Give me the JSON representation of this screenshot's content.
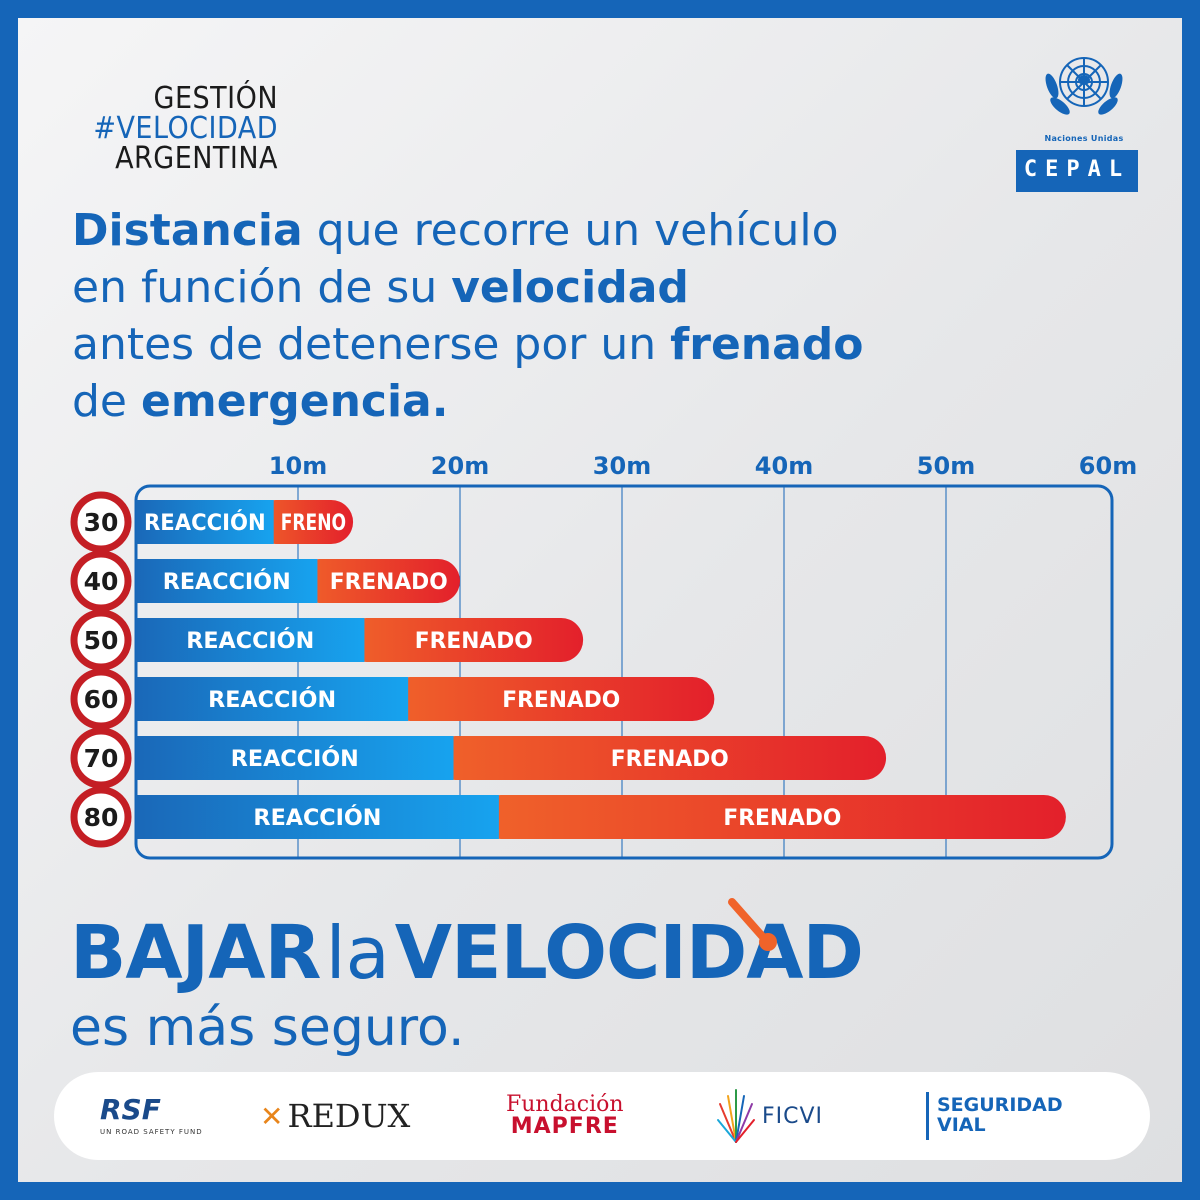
{
  "brand": {
    "line1": "GESTIÓN",
    "line2": "#VELOCIDAD",
    "line3": "ARGENTINA"
  },
  "logos": {
    "un_label": "Naciones Unidas",
    "cepal": "CEPAL"
  },
  "headline": {
    "l1_b": "Distancia",
    "l1_r": " que recorre un vehículo",
    "l2_r": "en función de su ",
    "l2_b": "velocidad",
    "l3_r": "antes de detenerse por un ",
    "l3_b": "frenado",
    "l4_r": "de ",
    "l4_b": "emergencia."
  },
  "colors": {
    "brand_blue": "#1565b8",
    "reaction_start": "#1a68b8",
    "reaction_end": "#17a3ef",
    "braking_start": "#f0632a",
    "braking_end": "#e3202b",
    "speed_sign_ring": "#c41e24"
  },
  "chart_data": {
    "type": "bar",
    "orientation": "horizontal",
    "stacked": true,
    "x_ticks": [
      "10m",
      "20m",
      "30m",
      "40m",
      "50m",
      "60m"
    ],
    "xlim": [
      0,
      60
    ],
    "categories": [
      "30",
      "40",
      "50",
      "60",
      "70",
      "80"
    ],
    "series": [
      {
        "name": "REACCIÓN",
        "labels": [
          "REACCIÓN",
          "REACCIÓN",
          "REACCIÓN",
          "REACCIÓN",
          "REACCIÓN",
          "REACCIÓN"
        ],
        "values": [
          8.5,
          11.2,
          14.1,
          16.8,
          19.6,
          22.4
        ]
      },
      {
        "name": "FRENADO",
        "labels": [
          "FRENO",
          "FRENADO",
          "FRENADO",
          "FRENADO",
          "FRENADO",
          "FRENADO"
        ],
        "values": [
          4.9,
          8.8,
          13.5,
          18.9,
          26.7,
          35.0
        ]
      }
    ],
    "grid": true
  },
  "slogan": {
    "word1": "BAJAR",
    "word2": "la",
    "word3": "VELOCIDAD",
    "line2": "es más seguro."
  },
  "sponsors": {
    "rsf": "RSF",
    "rsf_sub": "UN ROAD SAFETY FUND",
    "redux": "REDUX",
    "mapfre_1": "Fundación",
    "mapfre_2": "MAPFRE",
    "ficvi": "FICVI",
    "sv_1": "SEGURIDAD",
    "sv_2": "VIAL"
  }
}
